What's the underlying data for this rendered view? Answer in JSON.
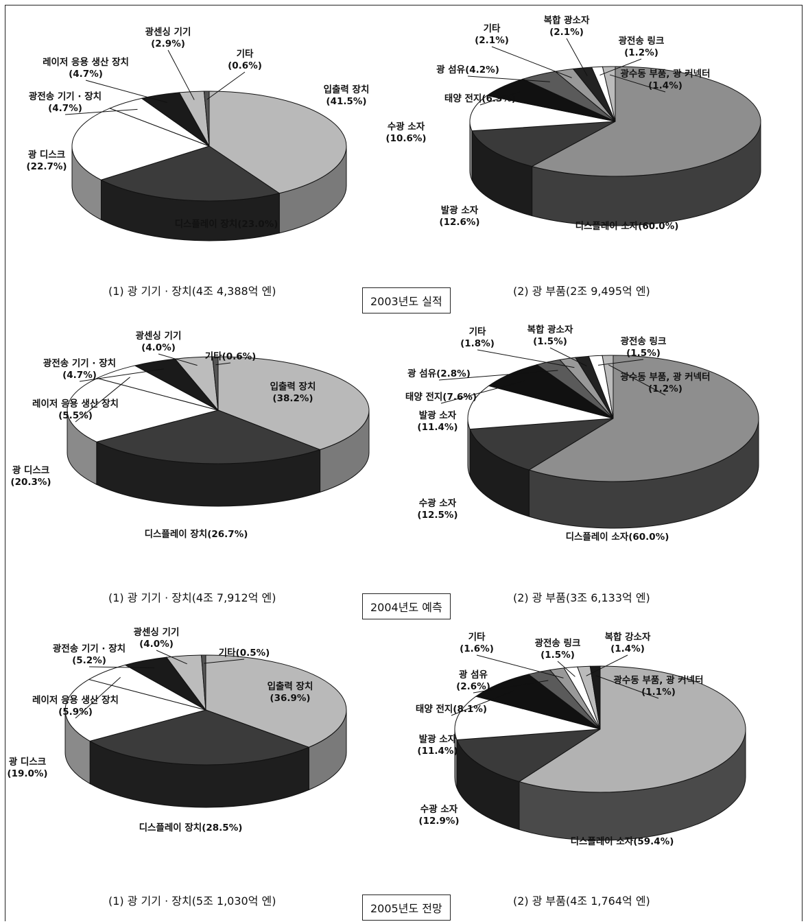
{
  "chart_data": [
    {
      "type": "pie",
      "title": "(1) 광 기기 · 장치(4조 4,388억 엔)",
      "group": "2003",
      "slices": [
        {
          "name": "입출력 장치",
          "value": 41.5,
          "label": [
            "입출력 장치",
            "(41.5%)"
          ],
          "color": "#b9b9b9",
          "side": "#7a7a7a"
        },
        {
          "name": "디스플레이 장치",
          "value": 23.0,
          "label": [
            "디스플레이 장치(23.0%)"
          ],
          "color": "#3b3b3b",
          "side": "#1e1e1e"
        },
        {
          "name": "광 디스크",
          "value": 22.7,
          "label": [
            "광 디스크",
            "(22.7%)"
          ],
          "color": "#ffffff",
          "side": "#8a8a8a"
        },
        {
          "name": "광전송 기기 · 장치",
          "value": 4.7,
          "label": [
            "광전송 기기 · 장치",
            "(4.7%)"
          ],
          "color": "#ffffff",
          "side": "#8a8a8a"
        },
        {
          "name": "레이저 응용 생산 장치",
          "value": 4.7,
          "label": [
            "레이저 응용 생산 장치",
            "(4.7%)"
          ],
          "color": "#1a1a1a",
          "side": "#0a0a0a"
        },
        {
          "name": "광센싱 기기",
          "value": 2.9,
          "label": [
            "광센싱 기기",
            "(2.9%)"
          ],
          "color": "#bcbcbc",
          "side": "#777777"
        },
        {
          "name": "기타",
          "value": 0.6,
          "label": [
            "기타",
            "(0.6%)"
          ],
          "color": "#555555",
          "side": "#333333"
        }
      ]
    },
    {
      "type": "pie",
      "title": "(2) 광 부품(2조 9,495억 엔)",
      "group": "2003",
      "slices": [
        {
          "name": "디스플레이 소자",
          "value": 60.0,
          "label": [
            "디스플레이 소자(60.0%)"
          ],
          "color": "#8e8e8e",
          "side": "#3e3e3e"
        },
        {
          "name": "발광 소자",
          "value": 12.6,
          "label": [
            "발광 소자",
            "(12.6%)"
          ],
          "color": "#3a3a3a",
          "side": "#1c1c1c"
        },
        {
          "name": "수광 소자",
          "value": 10.6,
          "label": [
            "수광 소자",
            "(10.6%)"
          ],
          "color": "#ffffff",
          "side": "#8a8a8a"
        },
        {
          "name": "태양 전지",
          "value": 6.3,
          "label": [
            "태양 전지(6.3%)"
          ],
          "color": "#111111",
          "side": "#050505"
        },
        {
          "name": "광 섬유",
          "value": 4.2,
          "label": [
            "광 섬유(4.2%)"
          ],
          "color": "#5a5a5a",
          "side": "#333333"
        },
        {
          "name": "기타",
          "value": 2.1,
          "label": [
            "기타",
            "(2.1%)"
          ],
          "color": "#999999",
          "side": "#555555"
        },
        {
          "name": "복합 광소자",
          "value": 2.1,
          "label": [
            "복합 광소자",
            "(2.1%)"
          ],
          "color": "#222222",
          "side": "#111111"
        },
        {
          "name": "광전송 링크",
          "value": 1.2,
          "label": [
            "광전송 링크",
            "(1.2%)"
          ],
          "color": "#ffffff",
          "side": "#999999"
        },
        {
          "name": "광수동 부품, 광 커넥터",
          "value": 1.4,
          "label": [
            "광수동 부품, 광 커넥터",
            "(1.4%)"
          ],
          "color": "#bbbbbb",
          "side": "#777777"
        }
      ]
    },
    {
      "type": "pie",
      "title": "(1) 광 기기 · 장치(4조 7,912억 엔)",
      "group": "2004",
      "slices": [
        {
          "name": "입출력 장치",
          "value": 38.2,
          "label": [
            "입출력 장치",
            "(38.2%)"
          ],
          "color": "#b9b9b9",
          "side": "#7a7a7a"
        },
        {
          "name": "디스플레이 장치",
          "value": 26.7,
          "label": [
            "디스플레이 장치(26.7%)"
          ],
          "color": "#3b3b3b",
          "side": "#1e1e1e"
        },
        {
          "name": "광 디스크",
          "value": 20.3,
          "label": [
            "광 디스크",
            "(20.3%)"
          ],
          "color": "#ffffff",
          "side": "#8a8a8a"
        },
        {
          "name": "레이저 응용 생산 장치",
          "value": 5.5,
          "label": [
            "레이저 응용 생산 장치",
            "(5.5%)"
          ],
          "color": "#ffffff",
          "side": "#8a8a8a"
        },
        {
          "name": "광전송 기기 · 장치",
          "value": 4.7,
          "label": [
            "광전송 기기 · 장치",
            "(4.7%)"
          ],
          "color": "#1a1a1a",
          "side": "#0a0a0a"
        },
        {
          "name": "광센싱 기기",
          "value": 4.0,
          "label": [
            "광센싱 기기",
            "(4.0%)"
          ],
          "color": "#bcbcbc",
          "side": "#777777"
        },
        {
          "name": "기타",
          "value": 0.6,
          "label": [
            "기타(0.6%)"
          ],
          "color": "#555555",
          "side": "#333333"
        }
      ]
    },
    {
      "type": "pie",
      "title": "(2) 광 부품(3조 6,133억 엔)",
      "group": "2004",
      "slices": [
        {
          "name": "디스플레이 소자",
          "value": 60.0,
          "label": [
            "디스플레이 소자(60.0%)"
          ],
          "color": "#8e8e8e",
          "side": "#3e3e3e"
        },
        {
          "name": "수광 소자",
          "value": 12.5,
          "label": [
            "수광 소자",
            "(12.5%)"
          ],
          "color": "#3a3a3a",
          "side": "#1c1c1c"
        },
        {
          "name": "발광 소자",
          "value": 11.4,
          "label": [
            "발광 소자",
            "(11.4%)"
          ],
          "color": "#ffffff",
          "side": "#8a8a8a"
        },
        {
          "name": "태양 전지",
          "value": 7.6,
          "label": [
            "태양 전지(7.6%)"
          ],
          "color": "#111111",
          "side": "#050505"
        },
        {
          "name": "광 섬유",
          "value": 2.8,
          "label": [
            "광 섬유(2.8%)"
          ],
          "color": "#5a5a5a",
          "side": "#333333"
        },
        {
          "name": "기타",
          "value": 1.8,
          "label": [
            "기타",
            "(1.8%)"
          ],
          "color": "#999999",
          "side": "#555555"
        },
        {
          "name": "복합 광소자",
          "value": 1.5,
          "label": [
            "복합 광소자",
            "(1.5%)"
          ],
          "color": "#222222",
          "side": "#111111"
        },
        {
          "name": "광전송 링크",
          "value": 1.5,
          "label": [
            "광전송 링크",
            "(1.5%)"
          ],
          "color": "#ffffff",
          "side": "#999999"
        },
        {
          "name": "광수동 부품, 광 커넥터",
          "value": 1.2,
          "label": [
            "광수동 부품, 광 커넥터",
            "(1.2%)"
          ],
          "color": "#bbbbbb",
          "side": "#777777"
        }
      ]
    },
    {
      "type": "pie",
      "title": "(1) 광 기기 · 장치(5조 1,030억 엔)",
      "group": "2005",
      "slices": [
        {
          "name": "입출력 장치",
          "value": 36.9,
          "label": [
            "입출력 장치",
            "(36.9%)"
          ],
          "color": "#b9b9b9",
          "side": "#7a7a7a"
        },
        {
          "name": "디스플레이 장치",
          "value": 28.5,
          "label": [
            "디스플레이 장치(28.5%)"
          ],
          "color": "#3b3b3b",
          "side": "#1e1e1e"
        },
        {
          "name": "광 디스크",
          "value": 19.0,
          "label": [
            "광 디스크",
            "(19.0%)"
          ],
          "color": "#ffffff",
          "side": "#8a8a8a"
        },
        {
          "name": "레이저 응용 생산 장치",
          "value": 5.9,
          "label": [
            "레이저 응용 생산 장치",
            "(5.9%)"
          ],
          "color": "#ffffff",
          "side": "#8a8a8a"
        },
        {
          "name": "광전송 기기 · 장치",
          "value": 5.2,
          "label": [
            "광전송 기기 · 장치",
            "(5.2%)"
          ],
          "color": "#1a1a1a",
          "side": "#0a0a0a"
        },
        {
          "name": "광센싱 기기",
          "value": 4.0,
          "label": [
            "광센싱 기기",
            "(4.0%)"
          ],
          "color": "#bcbcbc",
          "side": "#777777"
        },
        {
          "name": "기타",
          "value": 0.5,
          "label": [
            "기타(0.5%)"
          ],
          "color": "#555555",
          "side": "#333333"
        }
      ]
    },
    {
      "type": "pie",
      "title": "(2) 광 부품(4조 1,764억 엔)",
      "group": "2005",
      "slices": [
        {
          "name": "디스플레이 소자",
          "value": 59.4,
          "label": [
            "디스플레이 소자(59.4%)"
          ],
          "color": "#b2b2b2",
          "side": "#4a4a4a"
        },
        {
          "name": "수광 소자",
          "value": 12.9,
          "label": [
            "수광 소자",
            "(12.9%)"
          ],
          "color": "#3a3a3a",
          "side": "#1c1c1c"
        },
        {
          "name": "발광 소자",
          "value": 11.4,
          "label": [
            "발광 소자",
            "(11.4%)"
          ],
          "color": "#ffffff",
          "side": "#8a8a8a"
        },
        {
          "name": "태양 전지",
          "value": 8.1,
          "label": [
            "태양 전지(8.1%)"
          ],
          "color": "#111111",
          "side": "#050505"
        },
        {
          "name": "광 섬유",
          "value": 2.6,
          "label": [
            "광 섬유",
            "(2.6%)"
          ],
          "color": "#5a5a5a",
          "side": "#333333"
        },
        {
          "name": "기타",
          "value": 1.6,
          "label": [
            "기타",
            "(1.6%)"
          ],
          "color": "#999999",
          "side": "#555555"
        },
        {
          "name": "광전송 링크",
          "value": 1.5,
          "label": [
            "광전송 링크",
            "(1.5%)"
          ],
          "color": "#ffffff",
          "side": "#999999"
        },
        {
          "name": "복합 강소자",
          "value": 1.4,
          "label": [
            "복합 강소자",
            "(1.4%)"
          ],
          "color": "#bbbbbb",
          "side": "#777777"
        },
        {
          "name": "광수동 부품, 광 커넥터",
          "value": 1.1,
          "label": [
            "광수동 부품, 광 커넥터",
            "(1.1%)"
          ],
          "color": "#1a1a1a",
          "side": "#0a0a0a"
        }
      ]
    }
  ],
  "years": {
    "y2003": "2003년도 실적",
    "y2004": "2004년도 예측",
    "y2005": "2005년도 전망"
  }
}
